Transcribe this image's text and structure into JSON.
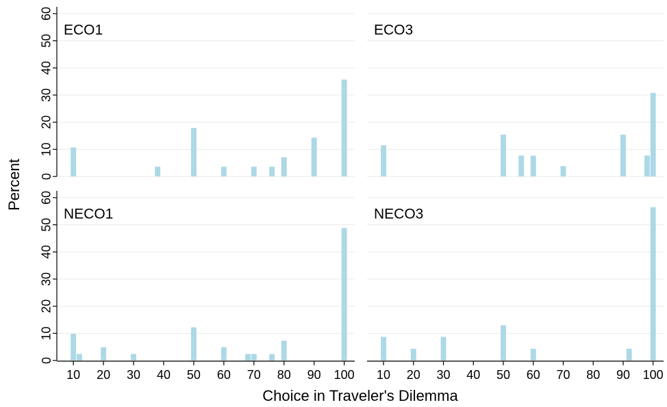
{
  "y_label": "Percent",
  "x_label": "Choice in Traveler's Dilemma",
  "chart_data": [
    {
      "type": "bar",
      "title": "ECO1",
      "color": "#add8e6",
      "x": [
        10,
        38,
        50,
        60,
        70,
        76,
        80,
        90,
        100
      ],
      "values": [
        10.7,
        3.6,
        17.9,
        3.6,
        3.6,
        3.6,
        7.1,
        14.3,
        35.7
      ],
      "xlim": [
        4.5,
        103.5
      ],
      "ylim": [
        0,
        62
      ],
      "yticks": [
        0,
        10,
        20,
        30,
        40,
        50,
        60
      ],
      "grid": true
    },
    {
      "type": "bar",
      "title": "ECO3",
      "color": "#add8e6",
      "x": [
        10,
        50,
        56,
        60,
        70,
        90,
        98,
        100
      ],
      "values": [
        11.5,
        15.4,
        7.7,
        7.7,
        3.8,
        15.4,
        7.7,
        30.8
      ],
      "xlim": [
        4.5,
        103.5
      ],
      "ylim": [
        0,
        62
      ],
      "yticks": [
        0,
        10,
        20,
        30,
        40,
        50,
        60
      ],
      "grid": true
    },
    {
      "type": "bar",
      "title": "NECO1",
      "color": "#add8e6",
      "x": [
        10,
        12,
        20,
        30,
        50,
        60,
        68,
        70,
        76,
        80,
        100
      ],
      "values": [
        9.8,
        2.4,
        4.9,
        2.4,
        12.2,
        4.9,
        2.4,
        2.4,
        2.4,
        7.3,
        48.8
      ],
      "xlim": [
        4.5,
        103.5
      ],
      "xticks": [
        10,
        20,
        30,
        40,
        50,
        60,
        70,
        80,
        90,
        100
      ],
      "ylim": [
        0,
        62
      ],
      "yticks": [
        0,
        10,
        20,
        30,
        40,
        50,
        60
      ],
      "grid": true
    },
    {
      "type": "bar",
      "title": "NECO3",
      "color": "#add8e6",
      "x": [
        10,
        20,
        30,
        50,
        60,
        92,
        100
      ],
      "values": [
        8.7,
        4.3,
        8.7,
        13.0,
        4.3,
        4.3,
        56.5
      ],
      "xlim": [
        4.5,
        103.5
      ],
      "xticks": [
        10,
        20,
        30,
        40,
        50,
        60,
        70,
        80,
        90,
        100
      ],
      "ylim": [
        0,
        62
      ],
      "yticks": [
        0,
        10,
        20,
        30,
        40,
        50,
        60
      ],
      "grid": true
    }
  ]
}
